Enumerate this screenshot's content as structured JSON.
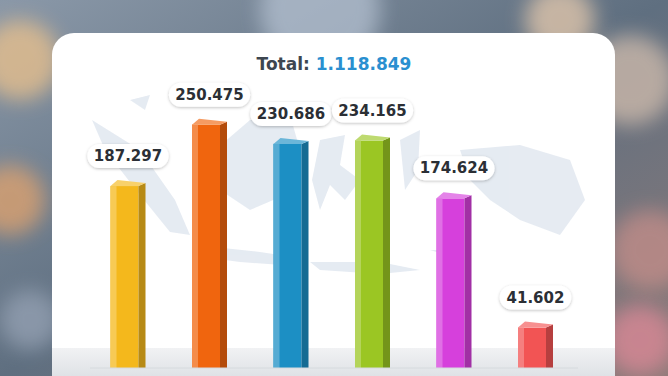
{
  "chart_data": {
    "type": "bar",
    "title": "Total: 1.118.849",
    "categories": [
      null,
      null,
      null,
      null,
      null,
      null
    ],
    "values": [
      187297,
      250475,
      230686,
      234165,
      174624,
      41602
    ],
    "value_labels": [
      "187.297",
      "250.475",
      "230.686",
      "234.165",
      "174.624",
      "41.602"
    ],
    "colors": [
      "#f4b81c",
      "#f0650e",
      "#1c8fc4",
      "#9bc623",
      "#d640dc",
      "#f25454"
    ],
    "ylim": [
      0,
      280000
    ],
    "grid": false,
    "data_labels": true,
    "tick_labels": false
  }
}
